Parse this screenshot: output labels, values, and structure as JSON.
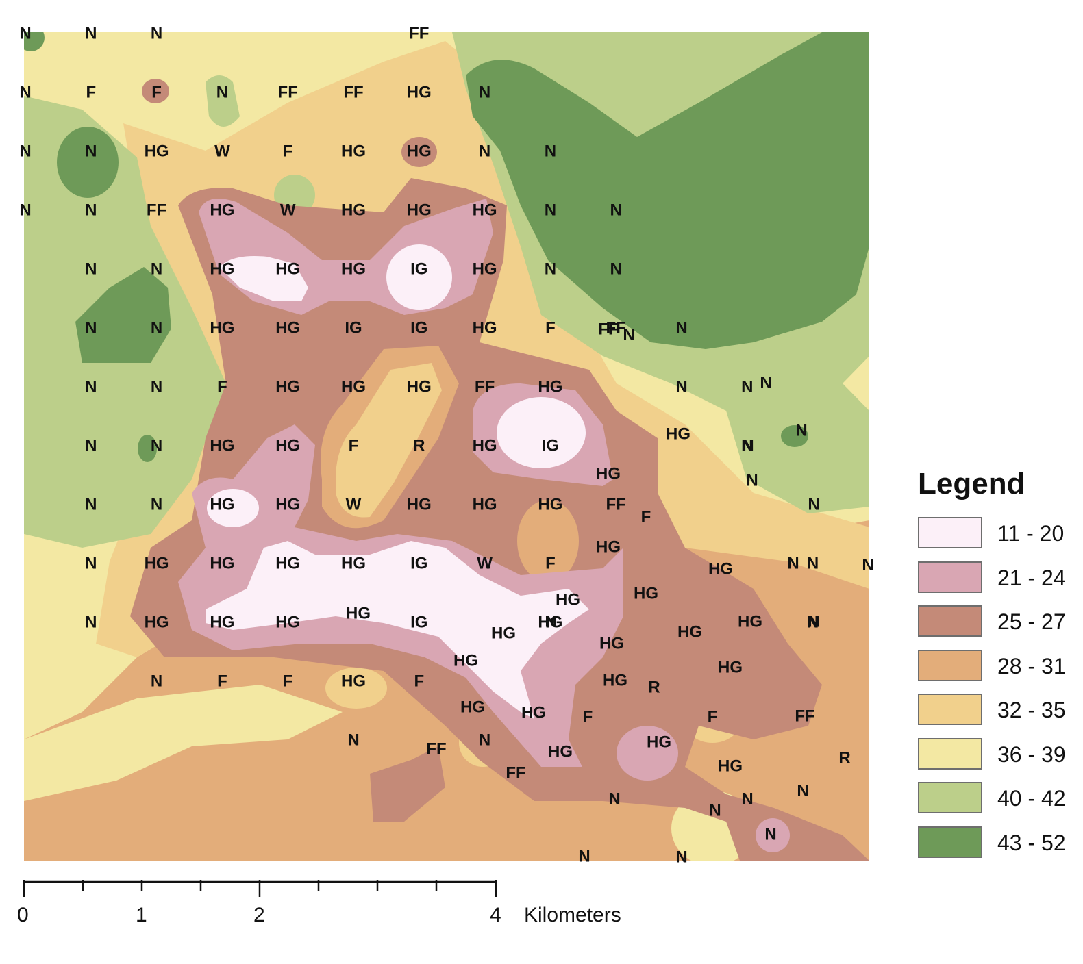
{
  "legend": {
    "title": "Legend",
    "classes": [
      {
        "label": "11 - 20",
        "color": "#fcf0f8"
      },
      {
        "label": "21 - 24",
        "color": "#d9a6b3"
      },
      {
        "label": "25 - 27",
        "color": "#c48a78"
      },
      {
        "label": "28 - 31",
        "color": "#e3ad7a"
      },
      {
        "label": "32 - 35",
        "color": "#f1d08c"
      },
      {
        "label": "36 - 39",
        "color": "#f3e8a3"
      },
      {
        "label": "40 - 42",
        "color": "#bccf8a"
      },
      {
        "label": "43 - 52",
        "color": "#6e9a58"
      }
    ]
  },
  "scale_bar": {
    "ticks": [
      "0",
      "1",
      "2",
      "4"
    ],
    "unit": "Kilometers"
  },
  "point_labels": [
    [
      "N",
      "N",
      "N",
      "",
      "",
      "",
      "FF",
      "",
      "",
      "",
      "",
      "",
      ""
    ],
    [
      "N",
      "F",
      "F",
      "N",
      "FF",
      "FF",
      "HG",
      "N",
      "",
      "",
      "",
      "",
      ""
    ],
    [
      "N",
      "N",
      "HG",
      "W",
      "F",
      "HG",
      "HG",
      "N",
      "N",
      "",
      "",
      "",
      ""
    ],
    [
      "N",
      "N",
      "FF",
      "HG",
      "W",
      "HG",
      "HG",
      "HG",
      "N",
      "N",
      "",
      "",
      ""
    ],
    [
      "",
      "N",
      "N",
      "HG",
      "HG",
      "HG",
      "IG",
      "HG",
      "N",
      "N",
      "",
      "",
      ""
    ],
    [
      "",
      "N",
      "N",
      "HG",
      "HG",
      "IG",
      "IG",
      "HG",
      "F",
      "FF",
      "N",
      "",
      ""
    ],
    [
      "",
      "N",
      "N",
      "F",
      "HG",
      "HG",
      "HG",
      "FF",
      "HG",
      "",
      "N",
      "N",
      ""
    ],
    [
      "",
      "N",
      "N",
      "HG",
      "HG",
      "F",
      "R",
      "HG",
      "IG",
      "",
      "",
      "N",
      ""
    ],
    [
      "",
      "N",
      "N",
      "HG",
      "HG",
      "W",
      "HG",
      "HG",
      "HG",
      "FF",
      "",
      "",
      ""
    ],
    [
      "",
      "N",
      "HG",
      "HG",
      "HG",
      "HG",
      "IG",
      "W",
      "F",
      "",
      "",
      "",
      "N"
    ],
    [
      "",
      "N",
      "HG",
      "HG",
      "HG",
      "",
      "IG",
      "",
      "HG",
      "",
      "",
      "",
      "N"
    ],
    [
      "",
      "",
      "N",
      "F",
      "F",
      "HG",
      "F",
      "",
      "",
      "",
      "",
      "",
      ""
    ],
    [
      "",
      "",
      "",
      "",
      "",
      "N",
      "",
      "N",
      "",
      "",
      "",
      "",
      ""
    ]
  ],
  "extra_labels": [
    "N",
    "N",
    "FF",
    "HG",
    "HG",
    "HG",
    "F",
    "HG",
    "N",
    "N",
    "N",
    "N",
    "HG",
    "HG",
    "HG",
    "N",
    "HG",
    "HG",
    "HG",
    "HG",
    "HG",
    "HG",
    "HG",
    "HG",
    "HG",
    "R",
    "HG",
    "HG",
    "F",
    "F",
    "FF",
    "FF",
    "FF",
    "HG",
    "HG",
    "R",
    "N",
    "N",
    "N",
    "N",
    "N",
    "N",
    "N"
  ]
}
